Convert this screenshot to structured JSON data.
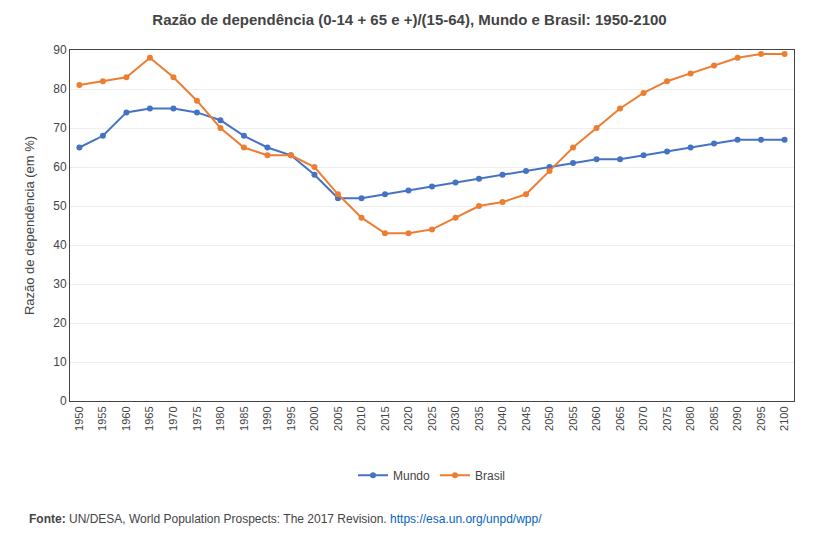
{
  "chart_data": {
    "type": "line",
    "title": "Razão de dependência (0-14 + 65 e +)/(15-64), Mundo e Brasil: 1950-2100",
    "ylabel": "Razão de dependência (em %)",
    "x": [
      1950,
      1955,
      1960,
      1965,
      1970,
      1975,
      1980,
      1985,
      1990,
      1995,
      2000,
      2005,
      2010,
      2015,
      2020,
      2025,
      2030,
      2035,
      2040,
      2045,
      2050,
      2055,
      2060,
      2065,
      2070,
      2075,
      2080,
      2085,
      2090,
      2095,
      2100
    ],
    "series": [
      {
        "name": "Mundo",
        "color": "#4472C4",
        "marker": "circle",
        "line_style": "solid",
        "values": [
          65,
          68,
          74,
          75,
          75,
          74,
          72,
          68,
          65,
          63,
          58,
          52,
          52,
          53,
          54,
          55,
          56,
          57,
          58,
          59,
          60,
          61,
          62,
          62,
          63,
          64,
          65,
          66,
          67,
          67,
          67
        ]
      },
      {
        "name": "Brasil",
        "color": "#ED7D31",
        "marker": "circle",
        "line_style": "solid",
        "values": [
          81,
          82,
          83,
          88,
          83,
          77,
          70,
          65,
          63,
          63,
          60,
          53,
          47,
          43,
          43,
          44,
          47,
          50,
          51,
          53,
          59,
          65,
          70,
          75,
          79,
          82,
          84,
          86,
          88,
          89,
          89
        ]
      }
    ],
    "xlim": [
      1948,
      2102
    ],
    "xticks": [
      1950,
      1955,
      1960,
      1965,
      1970,
      1975,
      1980,
      1985,
      1990,
      1995,
      2000,
      2005,
      2010,
      2015,
      2020,
      2025,
      2030,
      2035,
      2040,
      2045,
      2050,
      2055,
      2060,
      2065,
      2070,
      2075,
      2080,
      2085,
      2090,
      2095,
      2100
    ],
    "ylim": [
      0,
      90
    ],
    "yticks": [
      0,
      10,
      20,
      30,
      40,
      50,
      60,
      70,
      80,
      90
    ],
    "grid": "y",
    "legend": "bottom",
    "annotations": [
      {
        "text": "Fonte:"
      },
      {
        "text": "UN/DESA, World Population Prospects: The 2017 Revision."
      },
      {
        "text": "https://esa.un.org/unpd/wpp/",
        "color": "#0563C1"
      }
    ]
  }
}
